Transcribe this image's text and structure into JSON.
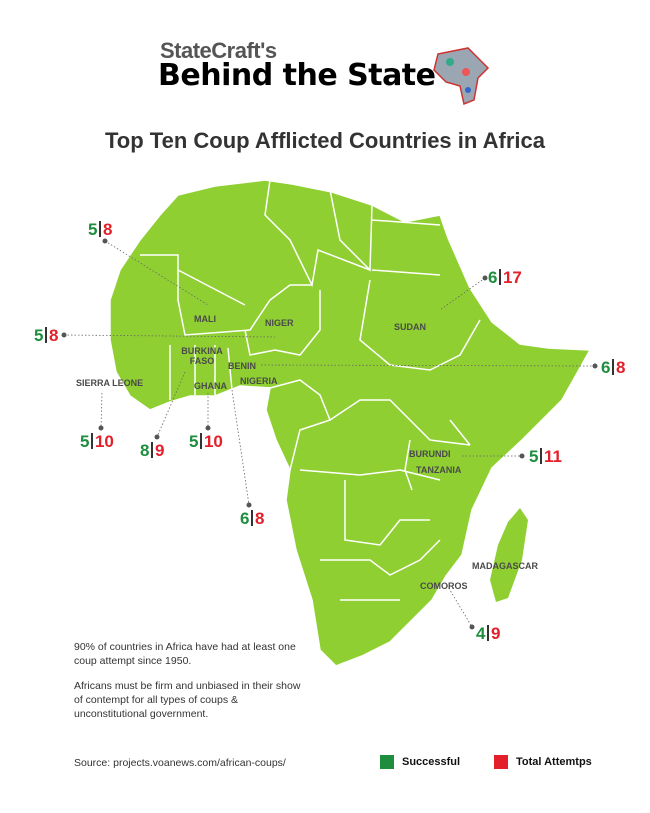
{
  "header": {
    "brand_top": "StateCraft's",
    "brand_main": "Behind the State",
    "logo_icon": "africa-collage-icon"
  },
  "title": "Top Ten Coup Afflicted Countries in Africa",
  "colors": {
    "land": "#8fcf32",
    "successful": "#1e8e3e",
    "total": "#e3202a"
  },
  "map_labels": [
    "MALI",
    "NIGER",
    "SUDAN",
    "BURKINA FASO",
    "BENIN",
    "NIGERIA",
    "GHANA",
    "SIERRA LEONE",
    "BURUNDI",
    "TANZANIA",
    "MADAGASCAR",
    "COMOROS"
  ],
  "callouts": [
    {
      "successful": "5",
      "total": "8"
    },
    {
      "successful": "5",
      "total": "8"
    },
    {
      "successful": "6",
      "total": "17"
    },
    {
      "successful": "6",
      "total": "8"
    },
    {
      "successful": "5",
      "total": "10"
    },
    {
      "successful": "8",
      "total": "9"
    },
    {
      "successful": "5",
      "total": "10"
    },
    {
      "successful": "6",
      "total": "8"
    },
    {
      "successful": "5",
      "total": "11"
    },
    {
      "successful": "4",
      "total": "9"
    }
  ],
  "notes": [
    "90% of countries in Africa have had at least one coup attempt since 1950.",
    "Africans must be firm and unbiased in their show of contempt for all types of coups & unconstitutional government."
  ],
  "source": "Source: projects.voanews.com/african-coups/",
  "legend": [
    {
      "label": "Successful",
      "color": "#1e8e3e"
    },
    {
      "label": "Total Attemtps",
      "color": "#e3202a"
    }
  ]
}
